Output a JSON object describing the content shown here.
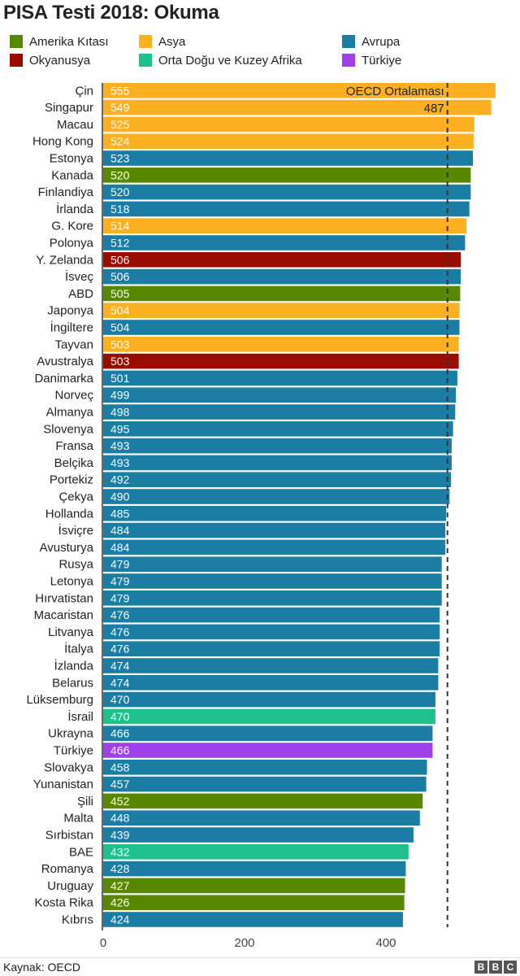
{
  "chart_data": {
    "type": "bar",
    "orientation": "horizontal",
    "title": "PISA Testi 2018: Okuma",
    "categories": [
      "Çin",
      "Singapur",
      "Macau",
      "Hong Kong",
      "Estonya",
      "Kanada",
      "Finlandiya",
      "İrlanda",
      "G. Kore",
      "Polonya",
      "Y. Zelanda",
      "İsveç",
      "ABD",
      "Japonya",
      "İngiltere",
      "Tayvan",
      "Avustralya",
      "Danimarka",
      "Norveç",
      "Almanya",
      "Slovenya",
      "Fransa",
      "Belçika",
      "Portekiz",
      "Çekya",
      "Hollanda",
      "İsviçre",
      "Avusturya",
      "Rusya",
      "Letonya",
      "Hırvatistan",
      "Macaristan",
      "Litvanya",
      "İtalya",
      "İzlanda",
      "Belarus",
      "Lüksemburg",
      "İsrail",
      "Ukrayna",
      "Türkiye",
      "Slovakya",
      "Yunanistan",
      "Şili",
      "Malta",
      "Sırbistan",
      "BAE",
      "Romanya",
      "Uruguay",
      "Kosta Rika",
      "Kıbrıs"
    ],
    "values": [
      555,
      549,
      525,
      524,
      523,
      520,
      520,
      518,
      514,
      512,
      506,
      506,
      505,
      504,
      504,
      503,
      503,
      501,
      499,
      498,
      495,
      493,
      493,
      492,
      490,
      485,
      484,
      484,
      479,
      479,
      479,
      476,
      476,
      476,
      474,
      474,
      470,
      470,
      466,
      466,
      458,
      457,
      452,
      448,
      439,
      432,
      428,
      427,
      426,
      424
    ],
    "groups": [
      "asia",
      "asia",
      "asia",
      "asia",
      "europe",
      "americas",
      "europe",
      "europe",
      "asia",
      "europe",
      "oceania",
      "europe",
      "americas",
      "asia",
      "europe",
      "asia",
      "oceania",
      "europe",
      "europe",
      "europe",
      "europe",
      "europe",
      "europe",
      "europe",
      "europe",
      "europe",
      "europe",
      "europe",
      "europe",
      "europe",
      "europe",
      "europe",
      "europe",
      "europe",
      "europe",
      "europe",
      "europe",
      "mena",
      "europe",
      "turkey",
      "europe",
      "europe",
      "americas",
      "europe",
      "europe",
      "mena",
      "europe",
      "americas",
      "americas",
      "europe"
    ],
    "legend": [
      {
        "key": "americas",
        "label": "Amerika Kıtası",
        "color": "#588700"
      },
      {
        "key": "asia",
        "label": "Asya",
        "color": "#fbaf21"
      },
      {
        "key": "europe",
        "label": "Avrupa",
        "color": "#1b7da3"
      },
      {
        "key": "oceania",
        "label": "Okyanusya",
        "color": "#990c00"
      },
      {
        "key": "mena",
        "label": "Orta Doğu ve Kuzey Afrika",
        "color": "#1ec08b"
      },
      {
        "key": "turkey",
        "label": "Türkiye",
        "color": "#a040e8"
      }
    ],
    "xlim": [
      0,
      580
    ],
    "x_ticks": [
      0,
      200,
      400
    ],
    "reference_line": {
      "value": 487,
      "label": "OECD Ortalaması",
      "value_label": "487"
    }
  },
  "footer": {
    "source": "Kaynak: OECD",
    "logo_letters": [
      "B",
      "B",
      "C"
    ]
  }
}
